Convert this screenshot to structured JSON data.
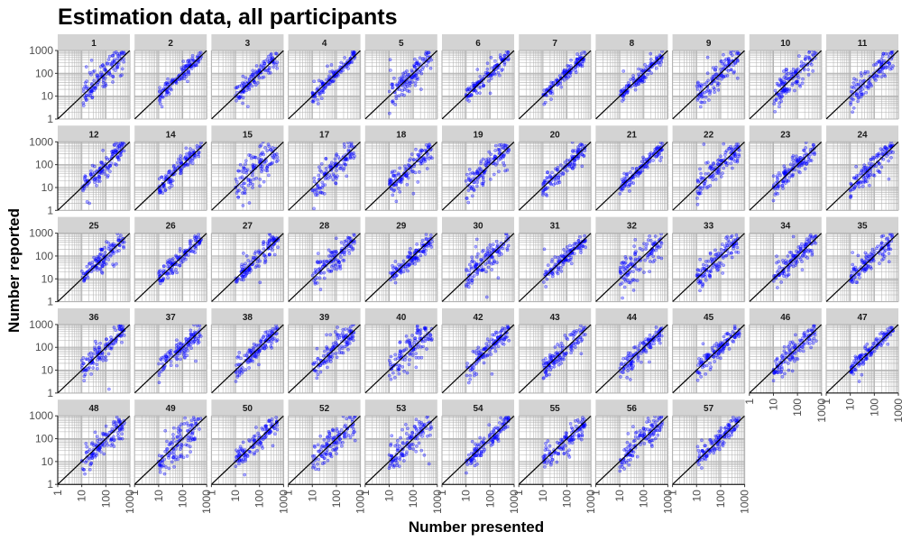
{
  "chart_data": {
    "type": "scatter",
    "title": "Estimation data, all participants",
    "xlabel": "Number presented",
    "ylabel": "Number reported",
    "x_scale": "log10",
    "y_scale": "log10",
    "xlim": [
      1,
      1000
    ],
    "ylim": [
      1,
      1000
    ],
    "ticks": [
      "1",
      "10",
      "100",
      "1000"
    ],
    "reference_line": "y = x",
    "point_color": "#0000ff",
    "point_alpha": 0.3,
    "strip_color": "#d3d3d3",
    "grid": true,
    "layout": "facet_wrap, 11 columns, 5 rows",
    "panels": [
      {
        "id": "1",
        "spread": 0.3
      },
      {
        "id": "2",
        "spread": 0.18
      },
      {
        "id": "3",
        "spread": 0.22
      },
      {
        "id": "4",
        "spread": 0.15
      },
      {
        "id": "5",
        "spread": 0.3
      },
      {
        "id": "6",
        "spread": 0.18
      },
      {
        "id": "7",
        "spread": 0.15
      },
      {
        "id": "8",
        "spread": 0.15
      },
      {
        "id": "9",
        "spread": 0.3
      },
      {
        "id": "10",
        "spread": 0.35
      },
      {
        "id": "11",
        "spread": 0.3
      },
      {
        "id": "12",
        "spread": 0.22
      },
      {
        "id": "14",
        "spread": 0.2
      },
      {
        "id": "15",
        "spread": 0.45
      },
      {
        "id": "17",
        "spread": 0.35
      },
      {
        "id": "18",
        "spread": 0.28
      },
      {
        "id": "19",
        "spread": 0.3
      },
      {
        "id": "20",
        "spread": 0.22
      },
      {
        "id": "21",
        "spread": 0.15
      },
      {
        "id": "22",
        "spread": 0.3
      },
      {
        "id": "23",
        "spread": 0.25
      },
      {
        "id": "24",
        "spread": 0.25
      },
      {
        "id": "25",
        "spread": 0.22
      },
      {
        "id": "26",
        "spread": 0.18
      },
      {
        "id": "27",
        "spread": 0.22
      },
      {
        "id": "28",
        "spread": 0.3
      },
      {
        "id": "29",
        "spread": 0.18
      },
      {
        "id": "30",
        "spread": 0.3
      },
      {
        "id": "31",
        "spread": 0.18
      },
      {
        "id": "32",
        "spread": 0.4
      },
      {
        "id": "33",
        "spread": 0.32
      },
      {
        "id": "34",
        "spread": 0.25
      },
      {
        "id": "35",
        "spread": 0.25
      },
      {
        "id": "36",
        "spread": 0.25
      },
      {
        "id": "37",
        "spread": 0.25
      },
      {
        "id": "38",
        "spread": 0.22
      },
      {
        "id": "39",
        "spread": 0.3
      },
      {
        "id": "40",
        "spread": 0.4
      },
      {
        "id": "42",
        "spread": 0.22
      },
      {
        "id": "43",
        "spread": 0.22
      },
      {
        "id": "44",
        "spread": 0.22
      },
      {
        "id": "45",
        "spread": 0.22
      },
      {
        "id": "46",
        "spread": 0.25
      },
      {
        "id": "47",
        "spread": 0.18
      },
      {
        "id": "48",
        "spread": 0.32
      },
      {
        "id": "49",
        "spread": 0.45
      },
      {
        "id": "50",
        "spread": 0.22
      },
      {
        "id": "52",
        "spread": 0.3
      },
      {
        "id": "53",
        "spread": 0.32
      },
      {
        "id": "54",
        "spread": 0.22
      },
      {
        "id": "55",
        "spread": 0.28
      },
      {
        "id": "56",
        "spread": 0.3
      },
      {
        "id": "57",
        "spread": 0.2
      }
    ]
  }
}
